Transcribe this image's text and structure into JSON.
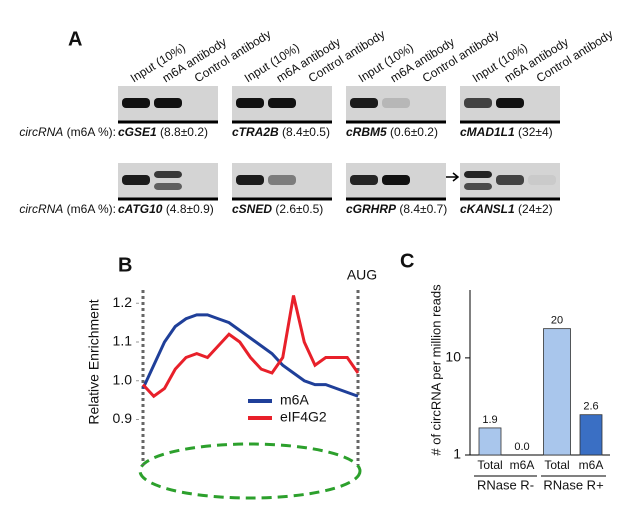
{
  "panel_a": {
    "label": "A",
    "lane_headers": [
      "Input (10%)",
      "m6A antibody",
      "Control antibody"
    ],
    "row_label": {
      "italic": "circRNA",
      "rest": "(m6A %):"
    },
    "rows": [
      [
        {
          "name": "cGSE1",
          "value": "(8.8±0.2)"
        },
        {
          "name": "cTRA2B",
          "value": "(8.4±0.5)"
        },
        {
          "name": "cRBM5",
          "value": "(0.6±0.2)"
        },
        {
          "name": "cMAD1L1",
          "value": "(32±4)"
        }
      ],
      [
        {
          "name": "cATG10",
          "value": "(4.8±0.9)"
        },
        {
          "name": "cSNED",
          "value": "(2.6±0.5)"
        },
        {
          "name": "cGRHRP",
          "value": "(8.4±0.7)"
        },
        {
          "name": "cKANSL1",
          "value": "(24±2)"
        }
      ]
    ]
  },
  "chart_data": [
    {
      "type": "line",
      "label": "B",
      "ylabel": "Relative Enrichment",
      "annotation": "AUG",
      "x": [
        0,
        5,
        10,
        15,
        20,
        25,
        30,
        35,
        40,
        45,
        50,
        55,
        60,
        65,
        70,
        75,
        80,
        85,
        90,
        95,
        100
      ],
      "xlim": [
        0,
        100
      ],
      "ylim": [
        0.86,
        1.26
      ],
      "yticks": [
        0.9,
        {
          "value": 1,
          "label": "1.0"
        },
        1.1,
        1.2
      ],
      "series": [
        {
          "name": "m6A",
          "color": "#1f3f99",
          "values": [
            0.98,
            1.04,
            1.1,
            1.14,
            1.16,
            1.17,
            1.17,
            1.16,
            1.15,
            1.13,
            1.11,
            1.09,
            1.07,
            1.04,
            1.02,
            1.0,
            0.99,
            0.99,
            0.98,
            0.97,
            0.96
          ]
        },
        {
          "name": "eIF4G2",
          "color": "#e8202a",
          "values": [
            0.99,
            0.96,
            0.98,
            1.03,
            1.06,
            1.07,
            1.06,
            1.09,
            1.12,
            1.1,
            1.06,
            1.03,
            1.02,
            1.06,
            1.22,
            1.1,
            1.04,
            1.06,
            1.06,
            1.06,
            1.02
          ]
        }
      ],
      "legend": "lower right"
    },
    {
      "type": "bar",
      "label": "C",
      "ylabel": "# of circRNA per million reads",
      "categories": [
        "Total",
        "m6A",
        "Total",
        "m6A"
      ],
      "values": [
        1.9,
        0,
        20,
        2.6
      ],
      "value_labels": [
        "1.9",
        "0.0",
        "20",
        "2.6"
      ],
      "colors": [
        "#a9c6ec",
        "#3a6fc4",
        "#a9c6ec",
        "#3a6fc4"
      ],
      "groups": [
        "RNase R-",
        "RNase R+"
      ],
      "log_scale": true,
      "ylim": [
        1,
        50
      ],
      "yticks": [
        1,
        10
      ]
    }
  ]
}
